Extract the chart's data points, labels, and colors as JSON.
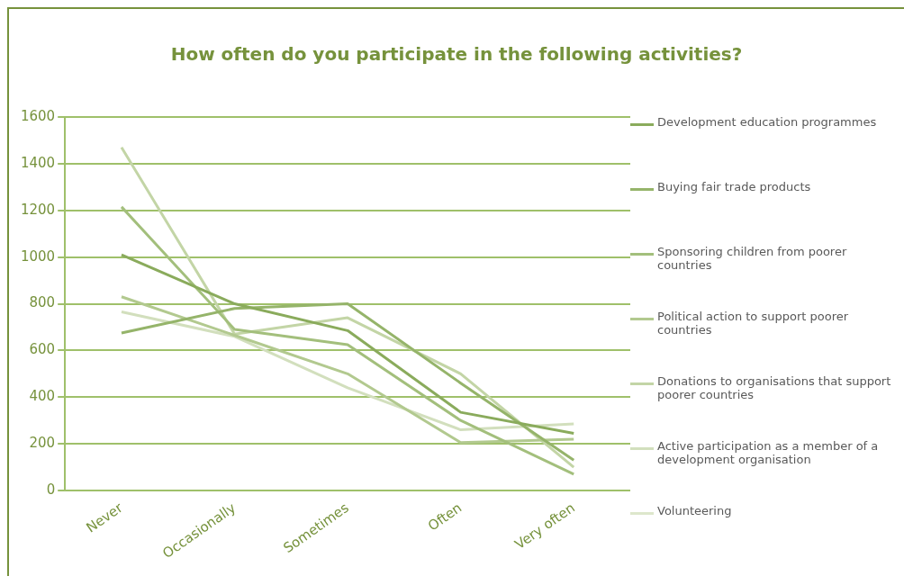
{
  "chart_data": {
    "type": "line",
    "title": "How often do you participate in the following activities?",
    "categories": [
      "Never",
      "Occasionally",
      "Sometimes",
      "Often",
      "Very often"
    ],
    "series": [
      {
        "name": "Development education programmes",
        "color": "#8aab5c",
        "values": [
          1010,
          800,
          685,
          335,
          245
        ]
      },
      {
        "name": "Buying fair trade products",
        "color": "#95b46a",
        "values": [
          675,
          780,
          800,
          460,
          130
        ]
      },
      {
        "name": "Sponsoring children from poorer countries",
        "color": "#a3bf7c",
        "values": [
          1215,
          690,
          625,
          300,
          70
        ]
      },
      {
        "name": "Political action to support poorer countries",
        "color": "#b2c98f",
        "values": [
          830,
          665,
          500,
          205,
          220
        ]
      },
      {
        "name": "Donations to organisations that support poorer countries",
        "color": "#c3d5a6",
        "values": [
          1470,
          670,
          740,
          500,
          100
        ]
      },
      {
        "name": "Active participation as a member of a development organisation",
        "color": "#d2dfbd",
        "values": [
          765,
          660,
          440,
          260,
          285
        ]
      },
      {
        "name": "Volunteering",
        "color": "#dde7cc",
        "values": [
          null,
          null,
          null,
          null,
          null
        ]
      }
    ],
    "ylim": [
      0,
      1600
    ],
    "yticks": [
      0,
      200,
      400,
      600,
      800,
      1000,
      1200,
      1400,
      1600
    ],
    "grid": "y",
    "legend": "right",
    "marker": "none",
    "line_style": "solid"
  }
}
